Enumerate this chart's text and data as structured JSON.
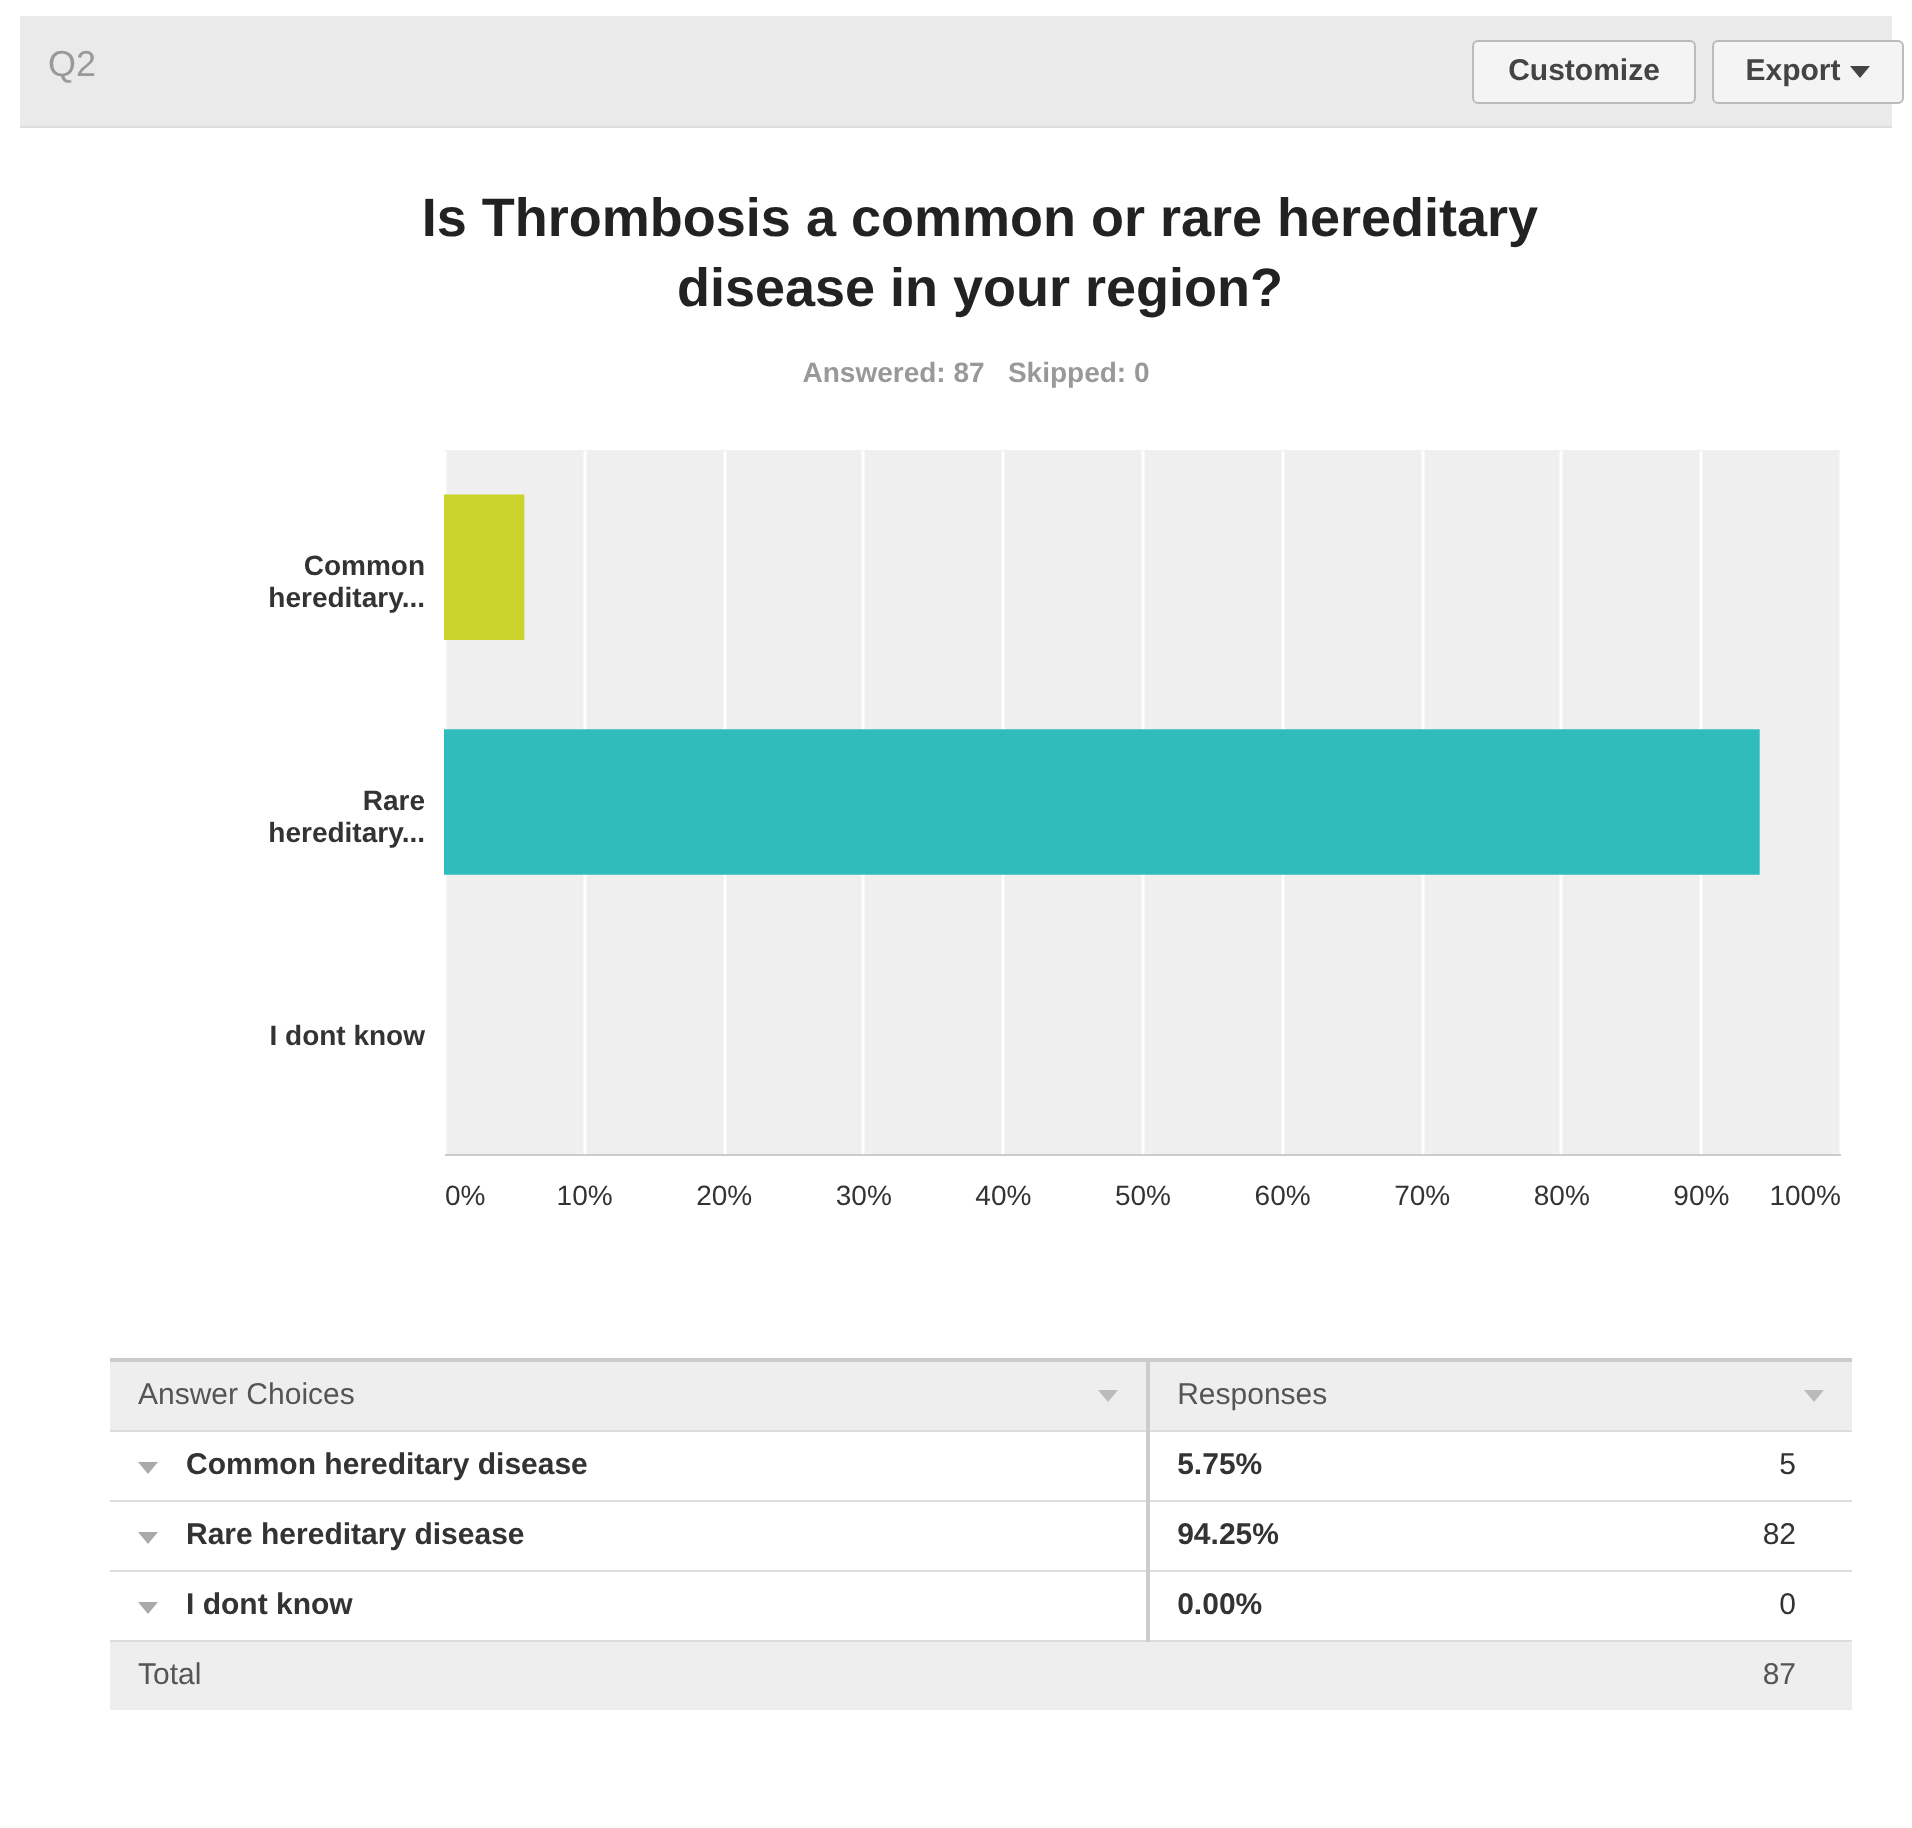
{
  "chart_data": {
    "type": "bar",
    "orientation": "horizontal",
    "title": "Is Thrombosis a common or rare hereditary disease in your region?",
    "subtitle": "Answered: 87   Skipped: 0",
    "categories": [
      "Common hereditary...",
      "Rare hereditary...",
      "I dont know"
    ],
    "values": [
      5.75,
      94.25,
      0
    ],
    "colors": [
      "#c9d32a",
      "#31bcbc",
      "#7f7f7f"
    ],
    "xlim": [
      0,
      100
    ],
    "xticks": [
      {
        "value": 0,
        "label": "0%"
      },
      {
        "value": 10,
        "label": "10%"
      },
      {
        "value": 20,
        "label": "20%"
      },
      {
        "value": 30,
        "label": "30%"
      },
      {
        "value": 40,
        "label": "40%"
      },
      {
        "value": 50,
        "label": "50%"
      },
      {
        "value": 60,
        "label": "60%"
      },
      {
        "value": 70,
        "label": "70%"
      },
      {
        "value": 80,
        "label": "80%"
      },
      {
        "value": 90,
        "label": "90%"
      },
      {
        "value": 100,
        "label": "100%"
      }
    ],
    "grid": "x",
    "annotations": [
      "Q2",
      "Customize",
      "Export",
      "Answer Choices",
      "Responses",
      "Common hereditary disease",
      "5.75%",
      "5",
      "Rare hereditary disease",
      "94.25%",
      "82",
      "I dont know",
      "0.00%",
      "0",
      "Total",
      "87"
    ]
  }
}
